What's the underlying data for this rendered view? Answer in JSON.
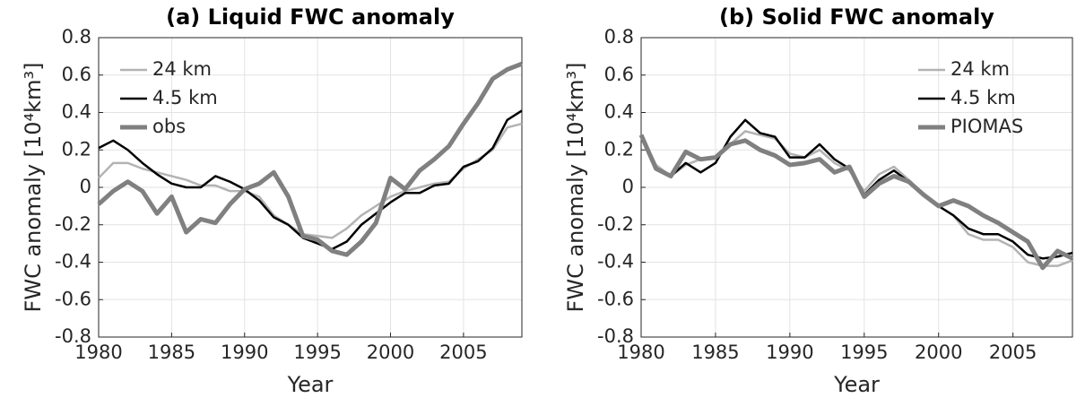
{
  "chart_data": [
    {
      "type": "line",
      "title": "(a) Liquid FWC anomaly",
      "xlabel": "Year",
      "ylabel": "FWC anomaly [10⁴km³]",
      "x": [
        1980,
        1981,
        1982,
        1983,
        1984,
        1985,
        1986,
        1987,
        1988,
        1989,
        1990,
        1991,
        1992,
        1993,
        1994,
        1995,
        1996,
        1997,
        1998,
        1999,
        2000,
        2001,
        2002,
        2003,
        2004,
        2005,
        2006,
        2007,
        2008,
        2009
      ],
      "series": [
        {
          "name": "24 km",
          "color": "#b3b3b3",
          "values": [
            0.05,
            0.13,
            0.13,
            0.1,
            0.08,
            0.06,
            0.04,
            0.01,
            0.01,
            -0.02,
            -0.02,
            -0.05,
            -0.15,
            -0.2,
            -0.25,
            -0.26,
            -0.27,
            -0.22,
            -0.15,
            -0.1,
            -0.05,
            -0.02,
            0.0,
            0.02,
            0.03,
            0.1,
            0.15,
            0.2,
            0.32,
            0.34
          ]
        },
        {
          "name": "4.5 km",
          "color": "#000000",
          "values": [
            0.21,
            0.25,
            0.2,
            0.13,
            0.07,
            0.02,
            0.0,
            0.0,
            0.06,
            0.03,
            -0.01,
            -0.07,
            -0.16,
            -0.2,
            -0.27,
            -0.3,
            -0.33,
            -0.29,
            -0.2,
            -0.14,
            -0.08,
            -0.03,
            -0.03,
            0.01,
            0.02,
            0.11,
            0.14,
            0.21,
            0.36,
            0.41
          ]
        },
        {
          "name": "obs",
          "color": "#808080",
          "values": [
            -0.09,
            -0.02,
            0.03,
            -0.02,
            -0.14,
            -0.05,
            -0.24,
            -0.17,
            -0.19,
            -0.09,
            -0.01,
            0.02,
            0.08,
            -0.05,
            -0.26,
            -0.28,
            -0.34,
            -0.36,
            -0.29,
            -0.19,
            0.05,
            -0.01,
            0.09,
            0.15,
            0.22,
            0.34,
            0.45,
            0.58,
            0.63,
            0.66
          ]
        }
      ],
      "xlim": [
        1980,
        2009
      ],
      "xticks": [
        1980,
        1985,
        1990,
        1995,
        2000,
        2005
      ],
      "ylim": [
        -0.8,
        0.8
      ],
      "yticks": [
        -0.8,
        -0.6,
        -0.4,
        -0.2,
        0,
        0.2,
        0.4,
        0.6,
        0.8
      ],
      "grid": true,
      "legend": "top-left"
    },
    {
      "type": "line",
      "title": "(b) Solid FWC anomaly",
      "xlabel": "Year",
      "ylabel": "FWC anomaly [10⁴km³]",
      "x": [
        1980,
        1981,
        1982,
        1983,
        1984,
        1985,
        1986,
        1987,
        1988,
        1989,
        1990,
        1991,
        1992,
        1993,
        1994,
        1995,
        1996,
        1997,
        1998,
        1999,
        2000,
        2001,
        2002,
        2003,
        2004,
        2005,
        2006,
        2007,
        2008,
        2009
      ],
      "series": [
        {
          "name": "24 km",
          "color": "#b3b3b3",
          "values": [
            0.28,
            0.12,
            0.06,
            0.12,
            0.15,
            0.16,
            0.23,
            0.3,
            0.28,
            0.26,
            0.18,
            0.16,
            0.2,
            0.13,
            0.09,
            -0.02,
            0.07,
            0.11,
            0.04,
            -0.04,
            -0.1,
            -0.15,
            -0.25,
            -0.28,
            -0.28,
            -0.32,
            -0.4,
            -0.42,
            -0.42,
            -0.39
          ]
        },
        {
          "name": "4.5 km",
          "color": "#000000",
          "values": [
            0.27,
            0.1,
            0.06,
            0.13,
            0.08,
            0.13,
            0.27,
            0.36,
            0.29,
            0.27,
            0.16,
            0.16,
            0.23,
            0.15,
            0.1,
            -0.04,
            0.04,
            0.09,
            0.03,
            -0.04,
            -0.1,
            -0.15,
            -0.22,
            -0.25,
            -0.25,
            -0.29,
            -0.36,
            -0.38,
            -0.37,
            -0.35
          ]
        },
        {
          "name": "PIOMAS",
          "color": "#808080",
          "values": [
            0.28,
            0.1,
            0.06,
            0.19,
            0.15,
            0.16,
            0.23,
            0.25,
            0.2,
            0.17,
            0.12,
            0.13,
            0.15,
            0.08,
            0.11,
            -0.05,
            0.02,
            0.06,
            0.03,
            -0.04,
            -0.1,
            -0.07,
            -0.1,
            -0.15,
            -0.19,
            -0.24,
            -0.29,
            -0.43,
            -0.34,
            -0.38
          ]
        }
      ],
      "xlim": [
        1980,
        2009
      ],
      "xticks": [
        1980,
        1985,
        1990,
        1995,
        2000,
        2005
      ],
      "ylim": [
        -0.8,
        0.8
      ],
      "yticks": [
        -0.8,
        -0.6,
        -0.4,
        -0.2,
        0,
        0.2,
        0.4,
        0.6,
        0.8
      ],
      "grid": true,
      "legend": "top-right"
    }
  ]
}
